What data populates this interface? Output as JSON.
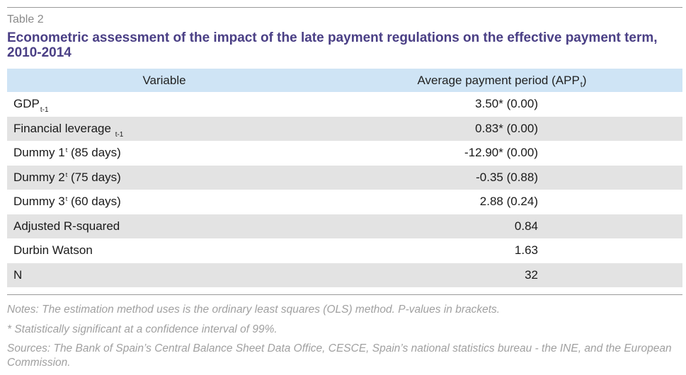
{
  "table_label": "Table 2",
  "title": "Econometric assessment of the impact of the late payment regulations on the effective payment term, 2010-2014",
  "headers": {
    "variable": "Variable",
    "app": "Average payment period (APP",
    "app_sub": "t",
    "app_close": ")"
  },
  "rows": [
    {
      "name": "GDP",
      "sub": "t-1",
      "sup": "",
      "suffix": "",
      "value": "3.50* (0.00)"
    },
    {
      "name": "Financial leverage ",
      "sub": "t-1",
      "sup": "",
      "suffix": "",
      "value": "0.83* (0.00)"
    },
    {
      "name": "Dummy 1",
      "sub": "",
      "sup": "t",
      "suffix": " (85 days)",
      "value": "-12.90* (0.00)"
    },
    {
      "name": "Dummy 2",
      "sub": "",
      "sup": "t",
      "suffix": " (75 days)",
      "value": "-0.35 (0.88)"
    },
    {
      "name": "Dummy 3",
      "sub": "",
      "sup": "t",
      "suffix": " (60 days)",
      "value": "2.88 (0.24)"
    },
    {
      "name": "Adjusted R-squared",
      "sub": "",
      "sup": "",
      "suffix": "",
      "value": "0.84"
    },
    {
      "name": "Durbin Watson",
      "sub": "",
      "sup": "",
      "suffix": "",
      "value": "1.63"
    },
    {
      "name": "N",
      "sub": "",
      "sup": "",
      "suffix": "",
      "value": "32"
    }
  ],
  "notes": {
    "method": "Notes: The estimation method uses is the ordinary least squares (OLS) method. P-values in brackets.",
    "significance": "* Statistically significant at a confidence interval of 99%.",
    "sources": "Sources: The Bank of Spain’s Central Balance Sheet Data Office, CESCE, Spain’s national statistics bureau - the INE, and the European Commission."
  },
  "colors": {
    "title": "#4a3f85",
    "header_bg": "#cfe4f5",
    "shaded_row": "#e3e3e3",
    "notes_text": "#a0a0a0"
  }
}
